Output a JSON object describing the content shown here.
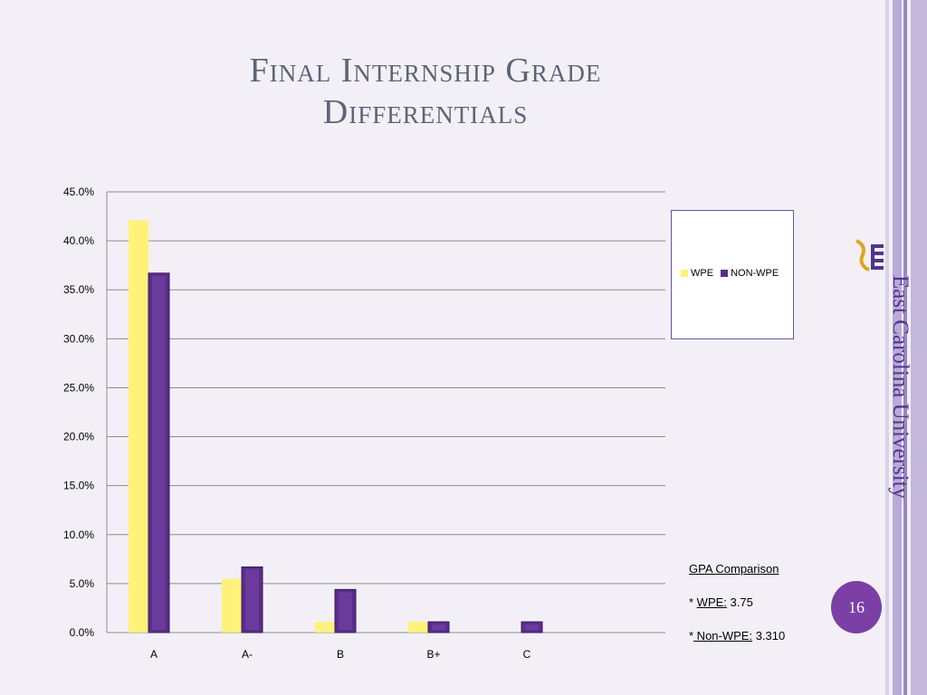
{
  "slide": {
    "title_line1": "Final Internship Grade",
    "title_line2": "Differentials",
    "page_number": "16",
    "logo_text": "East Carolina University"
  },
  "gpa": {
    "heading": "GPA Comparison",
    "wpe_prefix": "* ",
    "wpe_label": "WPE:",
    "wpe_value": " 3.75",
    "nonwpe_prefix": "*",
    "nonwpe_label": " Non-WPE:",
    "nonwpe_value": " 3.310"
  },
  "colors": {
    "wpe": "#fff27a",
    "non_wpe": "#5a2d8a",
    "stripe_light": "#c8bedc",
    "stripe_dark": "#8a78b2"
  },
  "chart_data": {
    "type": "bar",
    "categories": [
      "A",
      "A-",
      "B",
      "B+",
      "C"
    ],
    "series": [
      {
        "name": "WPE",
        "values": [
          42.1,
          5.5,
          1.1,
          1.1,
          0.0
        ]
      },
      {
        "name": "NON-WPE",
        "values": [
          36.7,
          6.7,
          4.4,
          1.1,
          1.1
        ]
      }
    ],
    "ylim": [
      0,
      45
    ],
    "yticks": [
      "0.0%",
      "5.0%",
      "10.0%",
      "15.0%",
      "20.0%",
      "25.0%",
      "30.0%",
      "35.0%",
      "40.0%",
      "45.0%"
    ],
    "grid": true,
    "legend": "right"
  }
}
